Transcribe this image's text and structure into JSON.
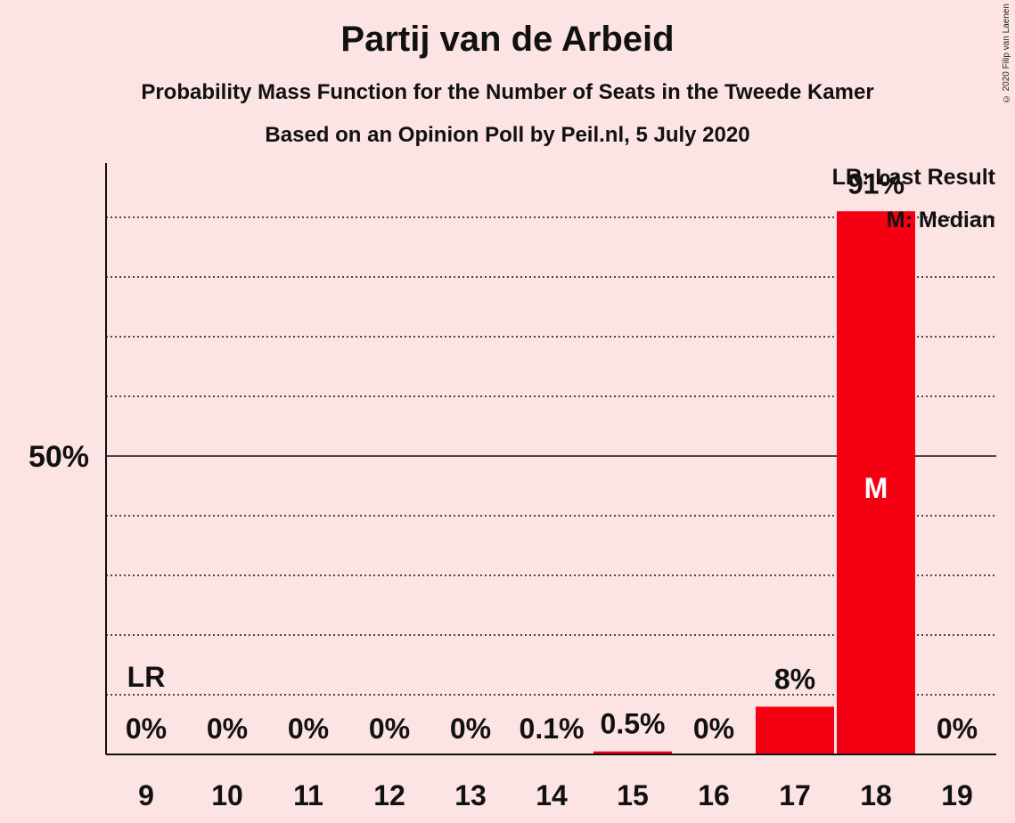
{
  "header": {
    "title": "Partij van de Arbeid",
    "subtitle": "Probability Mass Function for the Number of Seats in the Tweede Kamer",
    "subtitle2": "Based on an Opinion Poll by Peil.nl, 5 July 2020",
    "copyright": "© 2020 Filip van Laenen"
  },
  "legend": {
    "last_result": "LR: Last Result",
    "median": "M: Median"
  },
  "colors": {
    "background": "#FCE4E4",
    "bar": "#F40012",
    "axis": "#111111"
  },
  "chart_data": {
    "type": "bar",
    "categories": [
      "9",
      "10",
      "11",
      "12",
      "13",
      "14",
      "15",
      "16",
      "17",
      "18",
      "19"
    ],
    "values": [
      0,
      0,
      0,
      0,
      0,
      0.1,
      0.5,
      0,
      8,
      91,
      0
    ],
    "value_labels": [
      "0%",
      "0%",
      "0%",
      "0%",
      "0%",
      "0.1%",
      "0.5%",
      "0%",
      "8%",
      "91%",
      "0%"
    ],
    "ytick_labels": [
      "50%"
    ],
    "yticks": [
      50
    ],
    "ylim": [
      0,
      99
    ],
    "grid": true,
    "last_result_category": "9",
    "last_result_label": "LR",
    "median_category": "18",
    "median_label": "M"
  }
}
